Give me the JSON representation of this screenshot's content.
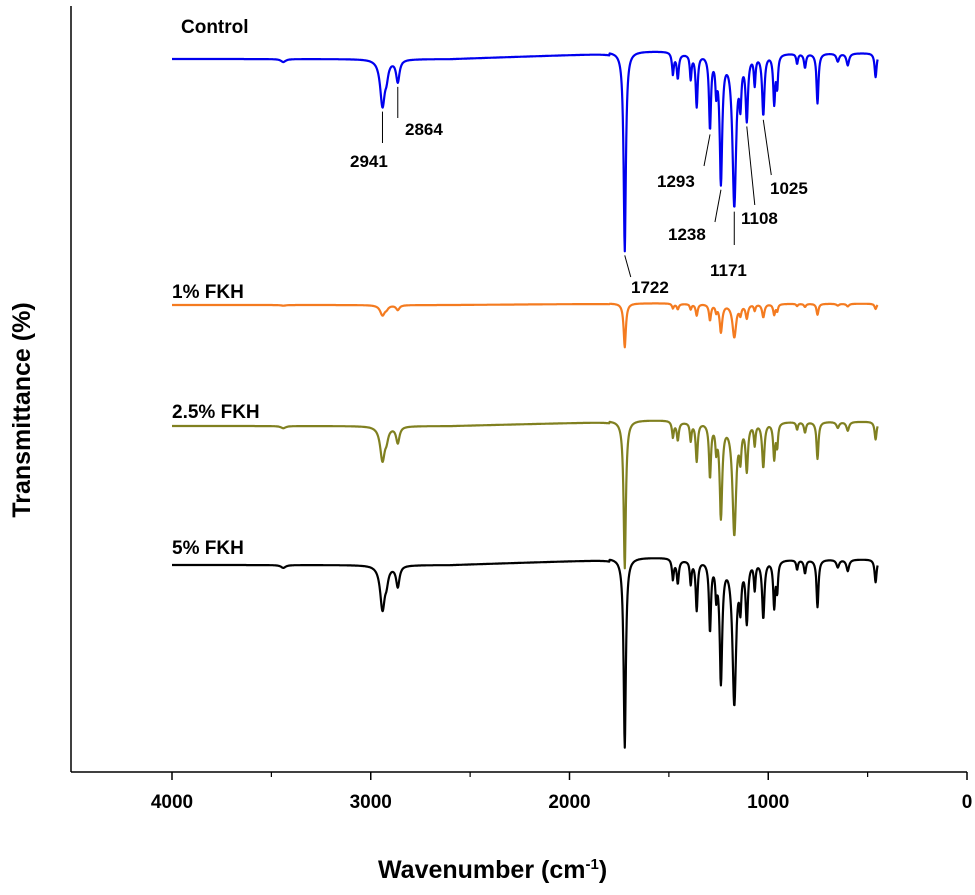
{
  "chart_data": {
    "type": "line",
    "title": "",
    "xlabel": "Wavenumber (cm",
    "xlabel_sup": "-1",
    "xlabel_end": ")",
    "ylabel": "Transmittance (%)",
    "xlim": [
      4500,
      0
    ],
    "x_reversed": true,
    "x_ticks": [
      4000,
      3000,
      2000,
      1000,
      0
    ],
    "x_tick_labels": [
      "4000",
      "3000",
      "2000",
      "1000",
      "0"
    ],
    "y_ticks_visible": false,
    "grid": false,
    "legend": "labels placed above each curve (left)",
    "series": [
      {
        "name": "Control",
        "color": "#0000ee",
        "baseline": 59,
        "depth_scale": 1.0,
        "peaks": [
          {
            "x": 2941,
            "depth": 46
          },
          {
            "x": 2864,
            "depth": 22
          },
          {
            "x": 1722,
            "depth": 200
          },
          {
            "x": 1293,
            "depth": 72
          },
          {
            "x": 1238,
            "depth": 126
          },
          {
            "x": 1171,
            "depth": 150
          },
          {
            "x": 1108,
            "depth": 62
          },
          {
            "x": 1025,
            "depth": 60
          }
        ]
      },
      {
        "name": "1% FKH",
        "color": "#f47b20",
        "baseline": 305,
        "depth_scale": 0.22
      },
      {
        "name": "2.5% FKH",
        "color": "#808020",
        "baseline": 426,
        "depth_scale": 0.74
      },
      {
        "name": "5% FKH",
        "color": "#000000",
        "baseline": 565,
        "depth_scale": 0.95
      }
    ],
    "annotations": [
      "2941",
      "2864",
      "1722",
      "1293",
      "1238",
      "1171",
      "1108",
      "1025"
    ]
  }
}
